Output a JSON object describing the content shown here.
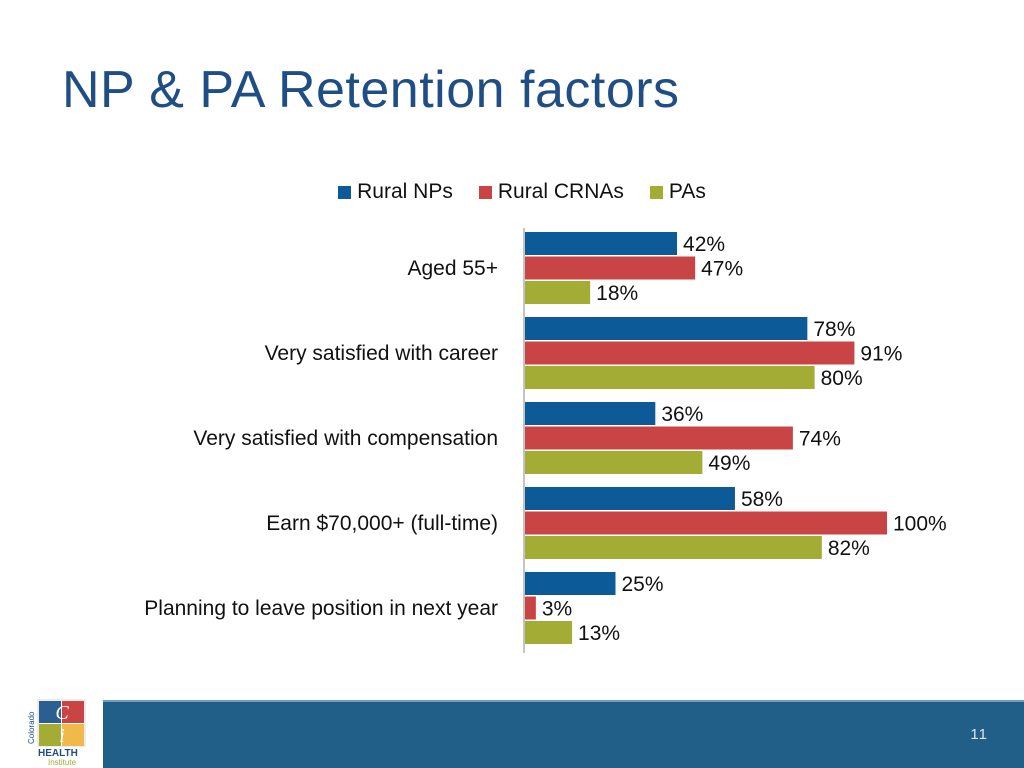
{
  "slide": {
    "title": "NP & PA Retention factors",
    "page_number": "11"
  },
  "logo": {
    "side_text": "Colorado",
    "letter_c": "C",
    "letter_i": "i",
    "word_health": "HEALTH",
    "word_institute": "Institute"
  },
  "chart_data": {
    "type": "bar",
    "orientation": "horizontal",
    "title": "",
    "xlabel": "",
    "ylabel": "",
    "xlim": [
      0,
      100
    ],
    "grid": false,
    "legend_position": "top",
    "value_suffix": "%",
    "categories": [
      "Aged 55+",
      "Very satisfied with career",
      "Very satisfied with compensation",
      "Earn $70,000+ (full-time)",
      "Planning to leave position in next year"
    ],
    "series": [
      {
        "name": "Rural NPs",
        "color": "#0d5a98",
        "values": [
          42,
          78,
          36,
          58,
          25
        ]
      },
      {
        "name": "Rural CRNAs",
        "color": "#c94444",
        "values": [
          47,
          91,
          74,
          100,
          3
        ]
      },
      {
        "name": "PAs",
        "color": "#a3ac35",
        "values": [
          18,
          80,
          49,
          82,
          13
        ]
      }
    ]
  }
}
